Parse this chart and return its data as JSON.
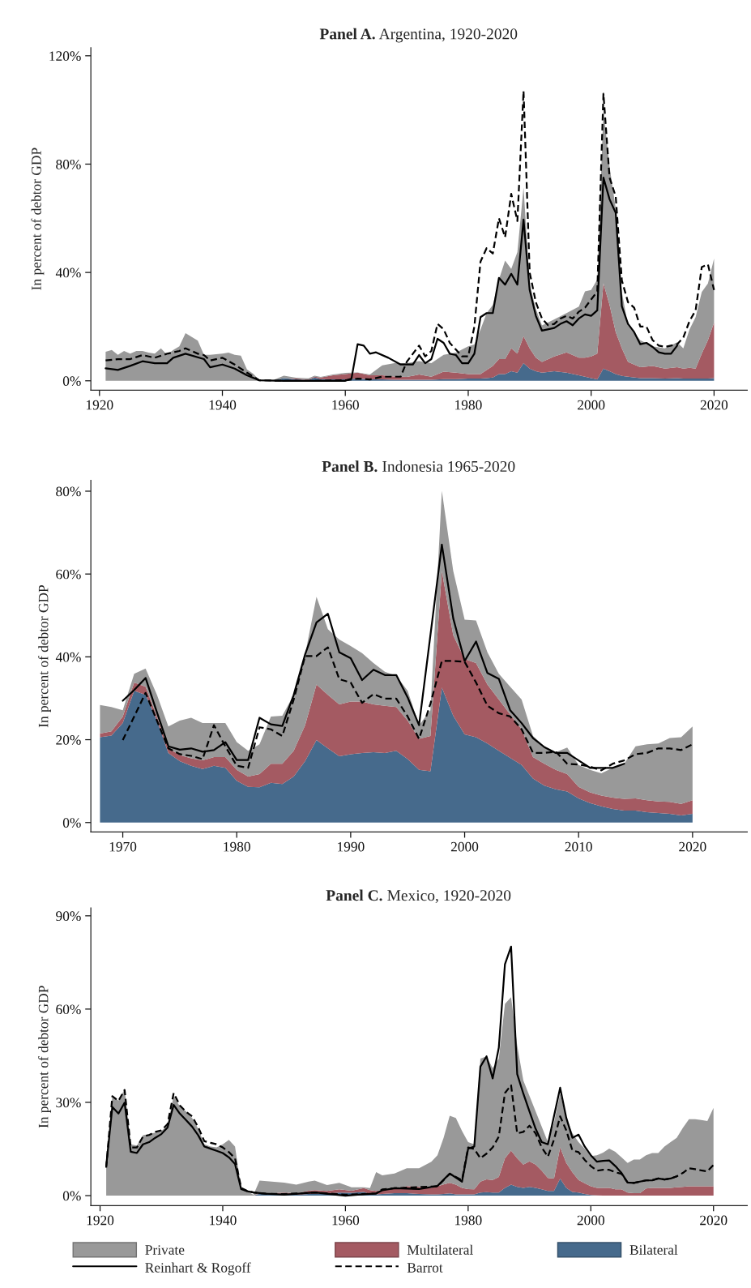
{
  "chart_data": [
    {
      "type": "area",
      "title": "Panel A. Argentina, 1920-2020",
      "ylabel": "In percent of debtor GDP",
      "stacked": true,
      "legend": false,
      "grid": false,
      "xlim": [
        1918.6,
        2025.4
      ],
      "xticks": [
        1920,
        1940,
        1960,
        1980,
        2000,
        2020
      ],
      "ylim": [
        -3.5,
        123
      ],
      "yticks": [
        {
          "value": 0,
          "label": "0%"
        },
        {
          "value": 40,
          "label": "40%"
        },
        {
          "value": 80,
          "label": "80%"
        },
        {
          "value": 120,
          "label": "120%"
        }
      ],
      "x": [
        1921,
        1922,
        1923,
        1924,
        1925,
        1926,
        1927,
        1928,
        1929,
        1930,
        1931,
        1932,
        1933,
        1934,
        1936,
        1937,
        1938,
        1940,
        1941,
        1942,
        1943,
        1944,
        1945,
        1946,
        1948,
        1950,
        1952,
        1954,
        1955,
        1956,
        1958,
        1960,
        1962,
        1964,
        1966,
        1968,
        1970,
        1972,
        1974,
        1976,
        1978,
        1980,
        1981,
        1982,
        1983,
        1984,
        1985,
        1986,
        1987,
        1988,
        1989,
        1990,
        1991,
        1992,
        1994,
        1996,
        1998,
        1999,
        2000,
        2001,
        2002,
        2003,
        2004,
        2005,
        2006,
        2008,
        2010,
        2012,
        2014,
        2015,
        2016,
        2017,
        2018,
        2019,
        2020
      ],
      "series": [
        {
          "color": "#466a8c",
          "values": [
            0,
            0,
            0,
            0,
            0,
            0,
            0,
            0,
            0,
            0,
            0,
            0,
            0,
            0,
            0,
            0,
            0,
            0,
            0,
            0,
            0,
            0,
            0,
            0,
            0,
            1.0,
            0.5,
            0.3,
            1.2,
            0.6,
            0.5,
            0.5,
            0.8,
            0.5,
            0.5,
            0.4,
            0.4,
            0.4,
            0.4,
            0.6,
            0.6,
            0.8,
            0.8,
            0.8,
            1.0,
            1.2,
            2.5,
            2.5,
            3.5,
            3.0,
            6.5,
            4.5,
            3.5,
            3.0,
            3.5,
            3.0,
            2.0,
            1.5,
            1.0,
            0.5,
            4.5,
            3.5,
            2.5,
            1.8,
            1.5,
            1.0,
            1.0,
            0.8,
            1.0,
            0.8,
            0.8,
            0.8,
            0.8,
            0.8,
            1.0
          ]
        },
        {
          "color": "#a45a62",
          "values": [
            0,
            0,
            0,
            0,
            0,
            0,
            0,
            0,
            0,
            0,
            0,
            0,
            0,
            0,
            0,
            0,
            0,
            0,
            0,
            0,
            0,
            0,
            0,
            0,
            0,
            0.0,
            0.3,
            0.2,
            0.3,
            0.6,
            1.5,
            2.0,
            2.2,
            1.5,
            1.5,
            1.2,
            1.0,
            1.9,
            1.1,
            2.8,
            2.4,
            1.7,
            1.7,
            1.7,
            3.0,
            4.3,
            5.5,
            5.5,
            8.5,
            7.0,
            10.0,
            7.5,
            5.0,
            4.0,
            5.5,
            7.5,
            6.5,
            7.0,
            8.0,
            9.5,
            31.5,
            24.5,
            15.5,
            10.2,
            5.5,
            4.0,
            4.5,
            3.7,
            4.0,
            3.7,
            4.0,
            3.7,
            9.2,
            14.2,
            20.5
          ]
        },
        {
          "color": "#999999",
          "values": [
            10.7,
            11.4,
            9.6,
            11,
            10,
            11,
            11,
            10.4,
            10,
            12,
            9.6,
            11.4,
            12.7,
            17.6,
            14.8,
            9.6,
            9.6,
            10,
            10.4,
            9.6,
            9.3,
            4.2,
            2.6,
            0.3,
            0,
            0.9,
            0.3,
            0.4,
            0.4,
            0.2,
            0.3,
            0.4,
            0.1,
            0.3,
            3.7,
            4.9,
            5.1,
            5.0,
            5.0,
            6.2,
            7.4,
            10.2,
            10.9,
            16.4,
            21,
            22.5,
            29.4,
            36.4,
            29.3,
            37.5,
            54.9,
            23.9,
            18.1,
            13.4,
            13.7,
            14.5,
            18.9,
            24.5,
            24.5,
            27.4,
            64,
            51,
            45.7,
            20.8,
            13.4,
            10,
            7.2,
            7.5,
            9.2,
            7.5,
            14.1,
            19,
            22.8,
            20.9,
            23.6
          ]
        },
        {
          "type": "line",
          "color": "#000000",
          "line_style": "solid",
          "x": [
            1921,
            1923,
            1925,
            1927,
            1929,
            1931,
            1932,
            1934,
            1937,
            1938,
            1940,
            1942,
            1944,
            1946,
            1950,
            1955,
            1960,
            1961,
            1962,
            1963,
            1964,
            1965,
            1967,
            1969,
            1971,
            1972,
            1973,
            1974,
            1975,
            1976,
            1977,
            1978,
            1979,
            1980,
            1981,
            1982,
            1983,
            1984,
            1985,
            1986,
            1987,
            1988,
            1989,
            1990,
            1991,
            1992,
            1994,
            1995,
            1996,
            1997,
            1998,
            1999,
            2000,
            2001,
            2002,
            2003,
            2004,
            2005,
            2006,
            2007,
            2008,
            2009,
            2010,
            2011,
            2012,
            2013,
            2014
          ],
          "values": [
            4.6,
            4.0,
            5.5,
            7.2,
            6.5,
            6.5,
            8.5,
            10.0,
            8.0,
            5.0,
            6.0,
            4.5,
            2.0,
            0.2,
            0,
            0,
            0,
            0.8,
            13.5,
            13.0,
            10.0,
            10.5,
            8.5,
            6.0,
            6.0,
            9.5,
            6.5,
            8.0,
            15.5,
            14.0,
            10.0,
            9.5,
            6.5,
            6.5,
            10.0,
            23.5,
            25.0,
            25.0,
            38.0,
            35.5,
            39.5,
            35.5,
            59.5,
            33.5,
            24.0,
            18.5,
            19.5,
            21.0,
            22.0,
            20.5,
            23.0,
            24.5,
            24.0,
            26.0,
            75.0,
            67.0,
            62.0,
            27.5,
            21.0,
            18.0,
            13.5,
            14.0,
            12.5,
            10.5,
            10.0,
            10.0,
            13.0
          ]
        },
        {
          "type": "line",
          "color": "#000000",
          "line_style": "dashed",
          "x": [
            1921,
            1923,
            1925,
            1927,
            1929,
            1931,
            1933,
            1934,
            1936,
            1937,
            1938,
            1940,
            1942,
            1944,
            1946,
            1950,
            1955,
            1960,
            1962,
            1964,
            1966,
            1969,
            1970,
            1971,
            1972,
            1973,
            1974,
            1975,
            1976,
            1977,
            1978,
            1979,
            1980,
            1981,
            1982,
            1983,
            1984,
            1985,
            1986,
            1987,
            1988,
            1989,
            1990,
            1991,
            1992,
            1993,
            1994,
            1995,
            1996,
            1997,
            1998,
            1999,
            2000,
            2001,
            2002,
            2003,
            2004,
            2005,
            2006,
            2007,
            2008,
            2009,
            2010,
            2011,
            2012,
            2013,
            2014,
            2015,
            2016,
            2017,
            2018,
            2019,
            2020
          ],
          "values": [
            7.5,
            8.0,
            8.0,
            9.5,
            8.5,
            10.0,
            11.0,
            12.0,
            10.0,
            9.5,
            7.5,
            8.5,
            6.0,
            3.0,
            0.2,
            0,
            0,
            0.2,
            0.8,
            0.5,
            1.5,
            1.5,
            7.0,
            10.0,
            13.0,
            9.0,
            11.0,
            21.0,
            19.0,
            14.0,
            11.5,
            9.0,
            9.0,
            20.0,
            44.0,
            49.0,
            47.0,
            60.0,
            53.0,
            69.0,
            59.0,
            107.0,
            40.0,
            29.0,
            23.0,
            20.5,
            21.0,
            23.0,
            24.0,
            23.0,
            25.5,
            27.0,
            30.0,
            33.0,
            106.0,
            75.0,
            68.0,
            37.0,
            29.0,
            27.0,
            20.0,
            20.0,
            15.0,
            13.0,
            12.5,
            13.0,
            13.5,
            16.0,
            22.0,
            26.0,
            42.0,
            43.0,
            33.5
          ]
        }
      ]
    },
    {
      "type": "area",
      "title": "Panel B. Indonesia 1965-2020",
      "ylabel": "In percent of debtor GDP",
      "stacked": true,
      "legend": false,
      "grid": false,
      "xlim": [
        1967.2,
        2024.8
      ],
      "xticks": [
        1970,
        1980,
        1990,
        2000,
        2010,
        2020
      ],
      "ylim": [
        -2.3,
        82.6
      ],
      "yticks": [
        {
          "value": 0,
          "label": "0%"
        },
        {
          "value": 20,
          "label": "20%"
        },
        {
          "value": 40,
          "label": "40%"
        },
        {
          "value": 60,
          "label": "60%"
        },
        {
          "value": 80,
          "label": "80%"
        }
      ],
      "x": [
        1968,
        1969,
        1970,
        1971,
        1972,
        1973,
        1974,
        1975,
        1976,
        1977,
        1978,
        1979,
        1980,
        1981,
        1982,
        1983,
        1984,
        1985,
        1986,
        1987,
        1988,
        1989,
        1990,
        1991,
        1992,
        1993,
        1994,
        1995,
        1996,
        1997,
        1998,
        1999,
        2000,
        2001,
        2002,
        2003,
        2004,
        2005,
        2006,
        2007,
        2008,
        2009,
        2010,
        2011,
        2012,
        2013,
        2014,
        2015,
        2016,
        2017,
        2018,
        2019,
        2020
      ],
      "series": [
        {
          "color": "#466a8c",
          "values": [
            20.6,
            21.0,
            24.0,
            31.8,
            30.8,
            24.6,
            16.8,
            14.8,
            13.7,
            12.9,
            13.7,
            13.2,
            10.1,
            8.6,
            8.5,
            9.6,
            9.3,
            11.1,
            14.8,
            19.9,
            17.9,
            16.0,
            16.5,
            16.8,
            17.0,
            16.8,
            17.3,
            15.3,
            12.7,
            12.4,
            32.6,
            25.8,
            21.3,
            20.6,
            19.1,
            17.3,
            15.6,
            13.9,
            10.6,
            8.9,
            8.0,
            7.5,
            5.8,
            4.7,
            3.9,
            3.3,
            2.9,
            2.9,
            2.5,
            2.3,
            2.1,
            1.7,
            2.1
          ]
        },
        {
          "color": "#a45a62",
          "values": [
            0.9,
            1.0,
            1.6,
            2.0,
            2.0,
            1.0,
            1.1,
            1.5,
            1.8,
            2.1,
            2.1,
            2.6,
            2.6,
            2.5,
            3.2,
            4.6,
            4.9,
            6.2,
            8.7,
            13.4,
            12.9,
            12.5,
            12.7,
            12.4,
            11.5,
            11.4,
            10.6,
            9.3,
            7.5,
            8.5,
            28.1,
            19.4,
            18.2,
            17.9,
            14.2,
            12.4,
            10.5,
            8.6,
            5.2,
            5.3,
            4.7,
            4.2,
            2.8,
            2.6,
            2.6,
            2.7,
            2.8,
            2.9,
            2.9,
            2.8,
            2.9,
            2.8,
            3.3
          ]
        },
        {
          "color": "#999999",
          "values": [
            6.9,
            5.9,
            1.5,
            2.1,
            4.4,
            5.2,
            5.3,
            8.3,
            9.8,
            9.0,
            8.2,
            8.2,
            6.7,
            6.2,
            7.2,
            11.4,
            11.6,
            13.5,
            17.1,
            21.2,
            15.9,
            15.7,
            13.4,
            11.7,
            10.0,
            8.2,
            7.5,
            7.2,
            3.3,
            6.2,
            19.4,
            15.5,
            9.5,
            10.3,
            7.8,
            6.2,
            6.7,
            7.2,
            5.1,
            4.2,
            4.3,
            6.4,
            5.3,
            5.4,
            5.4,
            7.2,
            8.5,
            12.6,
            13.5,
            14.0,
            15.4,
            16.1,
            17.8
          ]
        },
        {
          "type": "line",
          "color": "#000000",
          "line_style": "solid",
          "x": [
            1970,
            1971,
            1972,
            1973,
            1974,
            1975,
            1976,
            1977,
            1978,
            1979,
            1980,
            1981,
            1982,
            1983,
            1984,
            1985,
            1986,
            1987,
            1988,
            1989,
            1990,
            1991,
            1992,
            1993,
            1994,
            1995,
            1996,
            1998,
            1999,
            2000,
            2001,
            2002,
            2003,
            2004,
            2005,
            2006,
            2007,
            2008,
            2009,
            2010,
            2011,
            2012,
            2013,
            2014
          ],
          "values": [
            29.4,
            32.0,
            34.9,
            26.6,
            18.4,
            17.6,
            17.9,
            17.1,
            17.5,
            19.4,
            15.1,
            15.1,
            25.3,
            23.7,
            23.3,
            30.8,
            40.6,
            48.3,
            50.4,
            41.1,
            39.7,
            34.4,
            36.9,
            35.6,
            35.6,
            30.2,
            23.5,
            67.1,
            49.3,
            39.0,
            43.7,
            36.1,
            34.7,
            27.1,
            24.0,
            20.4,
            18.2,
            16.8,
            16.8,
            15.0,
            13.2,
            13.2,
            13.2,
            14.2
          ]
        },
        {
          "type": "line",
          "color": "#000000",
          "line_style": "dashed",
          "x": [
            1970,
            1971,
            1972,
            1973,
            1974,
            1975,
            1976,
            1977,
            1978,
            1979,
            1980,
            1981,
            1982,
            1983,
            1984,
            1985,
            1986,
            1987,
            1988,
            1989,
            1990,
            1991,
            1992,
            1993,
            1994,
            1995,
            1996,
            1997,
            1998,
            1999,
            2000,
            2001,
            2002,
            2003,
            2004,
            2005,
            2006,
            2007,
            2008,
            2009,
            2010,
            2011,
            2012,
            2013,
            2014,
            2015,
            2016,
            2017,
            2018,
            2019,
            2020
          ],
          "values": [
            19.9,
            25.6,
            31.3,
            24.6,
            17.9,
            16.5,
            16.1,
            15.3,
            23.5,
            18.4,
            13.7,
            13.2,
            23.0,
            22.5,
            20.9,
            29.7,
            40.2,
            40.2,
            42.3,
            34.6,
            33.8,
            28.9,
            31.0,
            29.9,
            29.9,
            25.6,
            20.2,
            28.7,
            39.0,
            39.0,
            38.8,
            33.8,
            28.2,
            26.4,
            25.6,
            22.5,
            16.8,
            16.8,
            17.1,
            14.2,
            14.0,
            13.5,
            12.6,
            14.2,
            15.0,
            16.5,
            16.8,
            17.9,
            17.9,
            17.5,
            18.9
          ]
        }
      ]
    },
    {
      "type": "area",
      "title": "Panel C. Mexico, 1920-2020",
      "ylabel": "In percent of debtor GDP",
      "stacked": true,
      "legend": "bottom",
      "grid": false,
      "xlim": [
        1918.5,
        2025.5
      ],
      "xticks": [
        1920,
        1940,
        1960,
        1980,
        2000,
        2020
      ],
      "ylim": [
        -3.2,
        92.5
      ],
      "yticks": [
        {
          "value": 0,
          "label": "0%"
        },
        {
          "value": 30,
          "label": "30%"
        },
        {
          "value": 60,
          "label": "60%"
        },
        {
          "value": 90,
          "label": "90%"
        }
      ],
      "x": [
        1921,
        1922,
        1923,
        1924,
        1925,
        1926,
        1927,
        1928,
        1929,
        1930,
        1931,
        1932,
        1933,
        1934,
        1935,
        1936,
        1937,
        1938,
        1939,
        1940,
        1941,
        1942,
        1943,
        1944,
        1945,
        1946,
        1948,
        1950,
        1952,
        1954,
        1955,
        1957,
        1959,
        1961,
        1963,
        1964,
        1965,
        1966,
        1968,
        1970,
        1972,
        1974,
        1975,
        1976,
        1977,
        1978,
        1979,
        1980,
        1981,
        1982,
        1983,
        1984,
        1985,
        1986,
        1987,
        1988,
        1989,
        1990,
        1991,
        1992,
        1993,
        1994,
        1995,
        1996,
        1997,
        1998,
        1999,
        2000,
        2001,
        2002,
        2003,
        2004,
        2005,
        2006,
        2007,
        2008,
        2009,
        2010,
        2011,
        2012,
        2013,
        2014,
        2015,
        2016,
        2017,
        2018,
        2019,
        2020
      ],
      "series": [
        {
          "name": "Bilateral",
          "color": "#466a8c",
          "values": [
            0,
            0,
            0,
            0,
            0,
            0,
            0,
            0,
            0,
            0,
            0,
            0,
            0,
            0,
            0,
            0,
            0,
            0,
            0,
            0,
            0,
            0,
            0,
            0,
            0,
            0.6,
            0.6,
            0.5,
            0.3,
            0.5,
            0.6,
            0.7,
            1.0,
            0.9,
            1.2,
            0.5,
            0.4,
            0.5,
            0.8,
            0.8,
            0.5,
            0.4,
            0.4,
            0.5,
            0.7,
            0.4,
            0.4,
            0.4,
            0.4,
            1.0,
            1.1,
            1.0,
            1.0,
            2.5,
            3.5,
            2.8,
            2.5,
            2.8,
            2.5,
            2.0,
            1.5,
            1.5,
            5.5,
            2.5,
            1.2,
            1.0,
            0.5,
            0.2,
            0.1,
            0,
            0,
            0,
            0,
            0,
            0,
            0,
            0,
            0,
            0,
            0,
            0,
            0,
            0,
            0,
            0,
            0,
            0,
            0
          ]
        },
        {
          "name": "Multilateral",
          "color": "#a45a62",
          "values": [
            0,
            0,
            0,
            0,
            0,
            0,
            0,
            0,
            0,
            0,
            0,
            0,
            0,
            0,
            0,
            0,
            0,
            0,
            0,
            0,
            0,
            0,
            0,
            0,
            0,
            0.2,
            0.2,
            0.5,
            0.4,
            1.1,
            1.2,
            0.8,
            1.0,
            0.7,
            1.2,
            1.3,
            1.1,
            1.3,
            1.4,
            2.3,
            2.3,
            2.1,
            2.6,
            3.1,
            3.4,
            3.1,
            2.1,
            1.7,
            1.6,
            3.5,
            4.1,
            4.0,
            5.0,
            9.5,
            11.0,
            9.2,
            7.5,
            8.2,
            7.5,
            6.0,
            4.2,
            4.0,
            10.0,
            8.0,
            6.3,
            4.0,
            3.5,
            2.8,
            2.4,
            2.5,
            2.5,
            2.0,
            2.0,
            1.0,
            0.8,
            0.8,
            2.3,
            2.5,
            2.5,
            2.5,
            2.5,
            2.7,
            2.8,
            3.0,
            3.0,
            3.0,
            3.0,
            3.0
          ]
        },
        {
          "name": "Private",
          "color": "#999999",
          "values": [
            9.5,
            32.1,
            30.6,
            34.2,
            16.5,
            16.1,
            19.4,
            19.8,
            20.3,
            20.8,
            22.6,
            32.1,
            28.7,
            27.1,
            25.0,
            21.5,
            16.5,
            15.8,
            15.5,
            16.5,
            17.9,
            15.8,
            2.4,
            1.4,
            0.3,
            4.0,
            3.7,
            3.2,
            2.8,
            2.9,
            3.0,
            1.9,
            2.1,
            1.1,
            0.3,
            0.6,
            6.1,
            4.7,
            4.9,
            5.7,
            6.0,
            8.4,
            10.0,
            15.0,
            21.6,
            21.5,
            18.3,
            15.1,
            14.5,
            39.6,
            39.6,
            36.0,
            38.1,
            49.7,
            49.3,
            36.3,
            27.0,
            21.1,
            17.1,
            14.2,
            11.5,
            18.1,
            17.3,
            14.5,
            12.6,
            12.2,
            11.1,
            9.7,
            10.5,
            11.3,
            12.6,
            12.1,
            10.3,
            9.5,
            10.8,
            10.8,
            10.7,
            11.2,
            11.2,
            13.3,
            14.7,
            15.9,
            19.0,
            21.6,
            21.6,
            21.3,
            21.0,
            25.2
          ]
        },
        {
          "type": "line",
          "name": "Reinhart & Rogoff",
          "color": "#000000",
          "line_style": "solid",
          "x": [
            1921,
            1922,
            1923,
            1924,
            1925,
            1926,
            1927,
            1928,
            1929,
            1930,
            1931,
            1932,
            1933,
            1934,
            1935,
            1936,
            1937,
            1938,
            1939,
            1940,
            1941,
            1942,
            1943,
            1944,
            1945,
            1947,
            1950,
            1955,
            1960,
            1962,
            1965,
            1966,
            1968,
            1972,
            1975,
            1977,
            1979,
            1980,
            1981,
            1982,
            1983,
            1984,
            1985,
            1986,
            1987,
            1988,
            1989,
            1990,
            1991,
            1992,
            1993,
            1995,
            1996,
            1997,
            1998,
            1999,
            2000,
            2001,
            2002,
            2003,
            2004,
            2005,
            2006,
            2007,
            2008,
            2009,
            2010,
            2011,
            2012,
            2013,
            2014
          ],
          "values": [
            9.5,
            28.5,
            26.4,
            29.9,
            14.1,
            13.7,
            16.5,
            17.2,
            18.6,
            19.8,
            21.9,
            29.2,
            26.4,
            24.3,
            22.2,
            19.4,
            15.8,
            15.1,
            14.4,
            13.7,
            12.3,
            10.2,
            2.1,
            1.4,
            1.0,
            0.6,
            0.3,
            1.0,
            0,
            0.3,
            0.7,
            1.7,
            2.4,
            2.1,
            3.1,
            7.1,
            4.5,
            15.1,
            15.8,
            41.5,
            44.8,
            37.7,
            47.6,
            74.4,
            80.1,
            39.1,
            32.8,
            27.1,
            21.5,
            17.2,
            16.5,
            34.7,
            25.0,
            18.6,
            19.6,
            15.8,
            13.0,
            10.9,
            11.2,
            11.3,
            9.5,
            7.3,
            4.2,
            4.1,
            4.5,
            4.9,
            4.9,
            5.5,
            5.2,
            5.5,
            6.2
          ]
        },
        {
          "type": "line",
          "name": "Barrot",
          "color": "#000000",
          "line_style": "dashed",
          "x": [
            1921,
            1922,
            1923,
            1924,
            1925,
            1926,
            1927,
            1928,
            1929,
            1930,
            1931,
            1932,
            1933,
            1934,
            1935,
            1936,
            1937,
            1938,
            1939,
            1940,
            1941,
            1942,
            1943,
            1944,
            1945,
            1947,
            1950,
            1955,
            1960,
            1965,
            1966,
            1968,
            1975,
            1977,
            1979,
            1980,
            1981,
            1982,
            1983,
            1984,
            1985,
            1986,
            1987,
            1988,
            1989,
            1990,
            1991,
            1992,
            1993,
            1994,
            1995,
            1996,
            1997,
            1998,
            1999,
            2000,
            2001,
            2002,
            2003,
            2004,
            2005,
            2006,
            2007,
            2008,
            2009,
            2010,
            2011,
            2012,
            2013,
            2014,
            2015,
            2016,
            2017,
            2018,
            2019,
            2020
          ],
          "values": [
            9.0,
            32.0,
            30.5,
            34.0,
            15.5,
            15.5,
            19.0,
            19.5,
            20.5,
            21.0,
            23.0,
            33.0,
            29.0,
            27.0,
            25.5,
            22.0,
            17.5,
            17.0,
            16.5,
            15.5,
            14.0,
            12.0,
            2.5,
            1.5,
            1.0,
            0.6,
            0.5,
            1.0,
            0.3,
            0.7,
            2.0,
            2.4,
            3.0,
            7.0,
            5.0,
            15.5,
            15.0,
            12.0,
            13.5,
            15.5,
            19.0,
            33.0,
            35.5,
            20.0,
            20.5,
            22.5,
            20.0,
            15.5,
            12.5,
            18.0,
            25.5,
            21.0,
            14.5,
            14.0,
            11.5,
            9.5,
            8.0,
            8.3,
            8.3,
            7.5,
            7.0,
            4.2,
            4.1,
            4.5,
            4.9,
            5.0,
            5.5,
            5.2,
            5.5,
            6.2,
            7.3,
            8.8,
            8.5,
            8.1,
            7.8,
            9.9
          ]
        }
      ]
    }
  ]
}
